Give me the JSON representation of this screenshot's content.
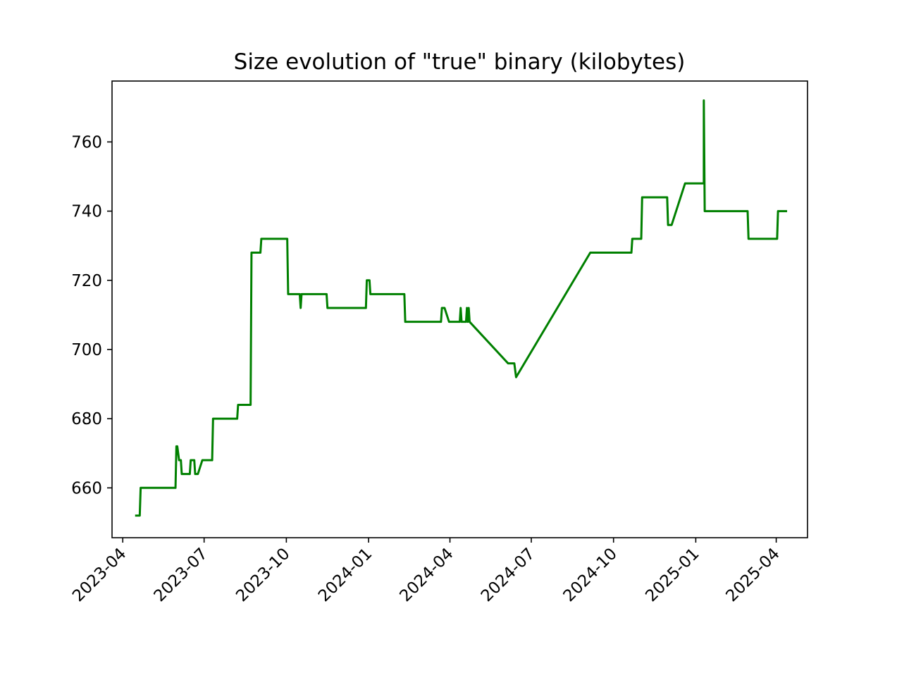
{
  "chart_data": {
    "type": "line",
    "title": "Size evolution of \"true\" binary (kilobytes)",
    "xlabel": "",
    "ylabel": "",
    "x_axis_type": "date",
    "x_ticks": [
      "2023-04",
      "2023-07",
      "2023-10",
      "2024-01",
      "2024-04",
      "2024-07",
      "2024-10",
      "2025-01",
      "2025-04"
    ],
    "y_ticks": [
      660,
      680,
      700,
      720,
      740,
      760
    ],
    "xlim": [
      "2023-03-20",
      "2025-05-06"
    ],
    "ylim": [
      645.6,
      777.6
    ],
    "grid": false,
    "legend": "none",
    "series": [
      {
        "color": "#008000",
        "points": [
          [
            "2023-04-16",
            652
          ],
          [
            "2023-04-20",
            652
          ],
          [
            "2023-04-21",
            660
          ],
          [
            "2023-05-30",
            660
          ],
          [
            "2023-05-31",
            672
          ],
          [
            "2023-06-01",
            672
          ],
          [
            "2023-06-03",
            668
          ],
          [
            "2023-06-05",
            668
          ],
          [
            "2023-06-06",
            664
          ],
          [
            "2023-06-15",
            664
          ],
          [
            "2023-06-16",
            668
          ],
          [
            "2023-06-20",
            668
          ],
          [
            "2023-06-21",
            664
          ],
          [
            "2023-06-24",
            664
          ],
          [
            "2023-06-29",
            668
          ],
          [
            "2023-07-10",
            668
          ],
          [
            "2023-07-11",
            680
          ],
          [
            "2023-08-07",
            680
          ],
          [
            "2023-08-08",
            684
          ],
          [
            "2023-08-22",
            684
          ],
          [
            "2023-08-23",
            728
          ],
          [
            "2023-09-02",
            728
          ],
          [
            "2023-09-03",
            732
          ],
          [
            "2023-10-02",
            732
          ],
          [
            "2023-10-03",
            716
          ],
          [
            "2023-10-16",
            716
          ],
          [
            "2023-10-17",
            712
          ],
          [
            "2023-10-18",
            716
          ],
          [
            "2023-11-15",
            716
          ],
          [
            "2023-11-16",
            712
          ],
          [
            "2023-12-29",
            712
          ],
          [
            "2023-12-30",
            720
          ],
          [
            "2024-01-02",
            720
          ],
          [
            "2024-01-03",
            716
          ],
          [
            "2024-02-10",
            716
          ],
          [
            "2024-02-11",
            708
          ],
          [
            "2024-03-22",
            708
          ],
          [
            "2024-03-23",
            712
          ],
          [
            "2024-03-26",
            712
          ],
          [
            "2024-03-31",
            708
          ],
          [
            "2024-04-12",
            708
          ],
          [
            "2024-04-13",
            712
          ],
          [
            "2024-04-14",
            708
          ],
          [
            "2024-04-19",
            708
          ],
          [
            "2024-04-20",
            712
          ],
          [
            "2024-04-21",
            708
          ],
          [
            "2024-04-22",
            712
          ],
          [
            "2024-04-23",
            708
          ],
          [
            "2024-06-05",
            696
          ],
          [
            "2024-06-12",
            696
          ],
          [
            "2024-06-14",
            692
          ],
          [
            "2024-09-05",
            728
          ],
          [
            "2024-10-21",
            728
          ],
          [
            "2024-10-22",
            732
          ],
          [
            "2024-11-01",
            732
          ],
          [
            "2024-11-02",
            744
          ],
          [
            "2024-11-30",
            744
          ],
          [
            "2024-12-01",
            736
          ],
          [
            "2024-12-05",
            736
          ],
          [
            "2024-12-20",
            748
          ],
          [
            "2025-01-10",
            748
          ],
          [
            "2025-01-10",
            772
          ],
          [
            "2025-01-11",
            740
          ],
          [
            "2025-02-28",
            740
          ],
          [
            "2025-03-01",
            732
          ],
          [
            "2025-04-02",
            732
          ],
          [
            "2025-04-03",
            740
          ],
          [
            "2025-04-12",
            740
          ]
        ]
      }
    ]
  }
}
